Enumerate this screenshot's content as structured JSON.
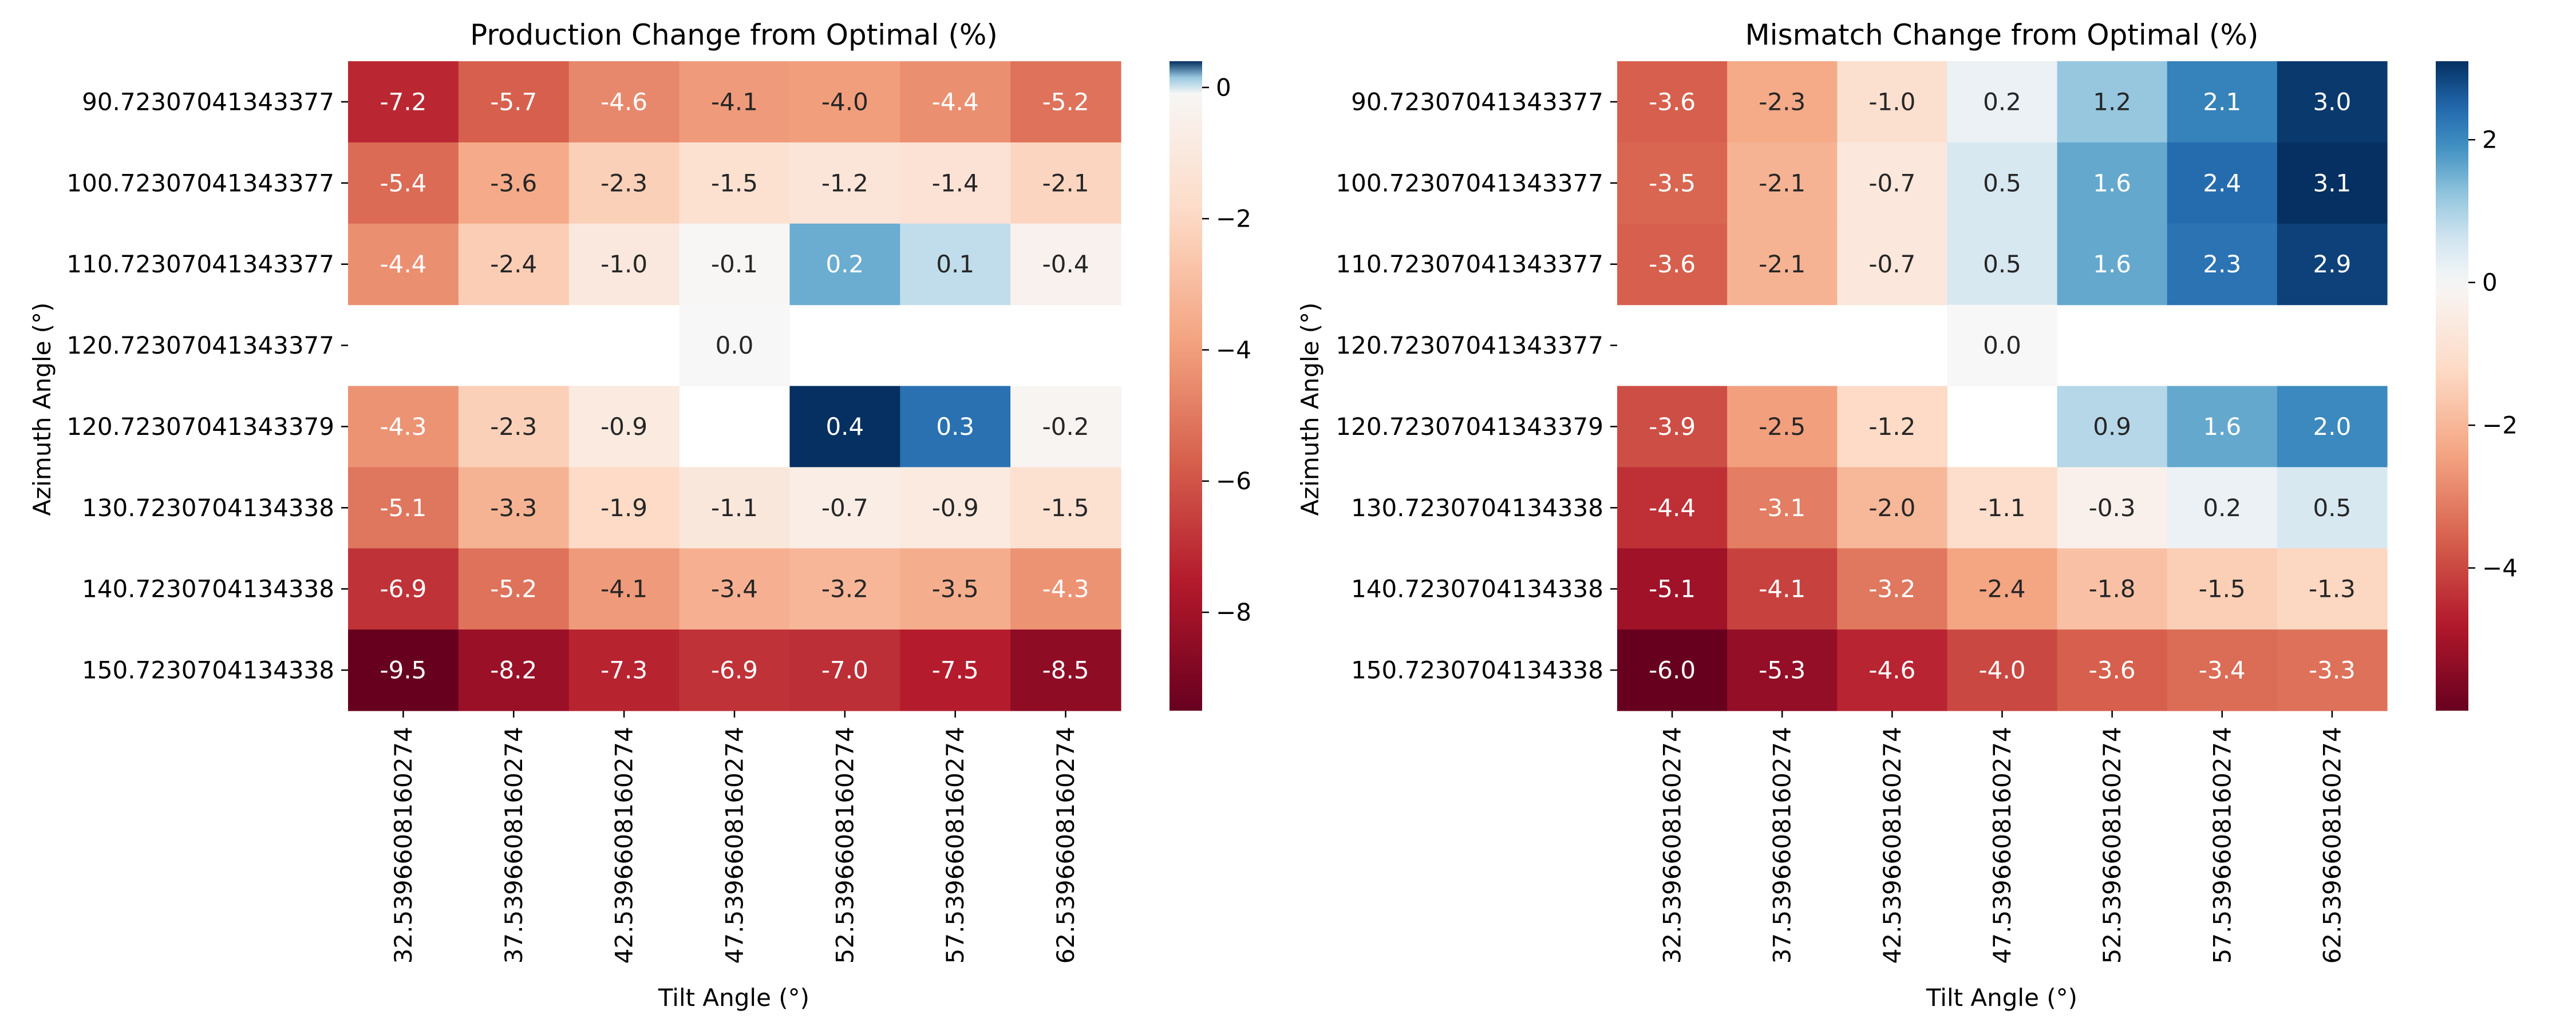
{
  "chart_data": [
    {
      "type": "heatmap",
      "title": "Production Change from Optimal (%)",
      "xlabel": "Tilt Angle (°)",
      "ylabel": "Azimuth Angle (°)",
      "x_categories": [
        "32.5396608160274",
        "37.5396608160274",
        "42.5396608160274",
        "47.5396608160274",
        "52.5396608160274",
        "57.5396608160274",
        "62.5396608160274"
      ],
      "y_categories": [
        "90.72307041343377",
        "100.72307041343377",
        "110.72307041343377",
        "120.72307041343377",
        "120.72307041343379",
        "130.7230704134338",
        "140.7230704134338",
        "150.7230704134338"
      ],
      "values": [
        [
          -7.2,
          -5.7,
          -4.6,
          -4.1,
          -4.0,
          -4.4,
          -5.2
        ],
        [
          -5.4,
          -3.6,
          -2.3,
          -1.5,
          -1.2,
          -1.4,
          -2.1
        ],
        [
          -4.4,
          -2.4,
          -1.0,
          -0.1,
          0.2,
          0.1,
          -0.4
        ],
        [
          null,
          null,
          null,
          0.0,
          null,
          null,
          null
        ],
        [
          -4.3,
          -2.3,
          -0.9,
          null,
          0.4,
          0.3,
          -0.2
        ],
        [
          -5.1,
          -3.3,
          -1.9,
          -1.1,
          -0.7,
          -0.9,
          -1.5
        ],
        [
          -6.9,
          -5.2,
          -4.1,
          -3.4,
          -3.2,
          -3.5,
          -4.3
        ],
        [
          -9.5,
          -8.2,
          -7.3,
          -6.9,
          -7.0,
          -7.5,
          -8.5
        ]
      ],
      "display_labels": [
        [
          "-7.2",
          "-5.7",
          "-4.6",
          "-4.1",
          "-4.0",
          "-4.4",
          "-5.2"
        ],
        [
          "-5.4",
          "-3.6",
          "-2.3",
          "-1.5",
          "-1.2",
          "-1.4",
          "-2.1"
        ],
        [
          "-4.4",
          "-2.4",
          "-1.0",
          "-0.1",
          "0.2",
          "0.1",
          "-0.4"
        ],
        [
          null,
          null,
          null,
          "0.0",
          null,
          null,
          null
        ],
        [
          "-4.3",
          "-2.3",
          "-0.9",
          null,
          "0.4",
          "0.3",
          "-0.2"
        ],
        [
          "-5.1",
          "-3.3",
          "-1.9",
          "-1.1",
          "-0.7",
          "-0.9",
          "-1.5"
        ],
        [
          "-6.9",
          "-5.2",
          "-4.1",
          "-3.4",
          "-3.2",
          "-3.5",
          "-4.3"
        ],
        [
          "-9.5",
          "-8.2",
          "-7.3",
          "-6.9",
          "-7.0",
          "-7.5",
          "-8.5"
        ]
      ],
      "colormap": "RdBu",
      "vmin": -9.5,
      "vmax": 0.4,
      "vcenter": 0,
      "colorbar_ticks": [
        0,
        -2,
        -4,
        -6,
        -8
      ],
      "colorbar_tick_labels": [
        "0",
        "−2",
        "−4",
        "−6",
        "−8"
      ],
      "missing_color": "#ffffff"
    },
    {
      "type": "heatmap",
      "title": "Mismatch Change from Optimal (%)",
      "xlabel": "Tilt Angle (°)",
      "ylabel": "Azimuth Angle (°)",
      "x_categories": [
        "32.5396608160274",
        "37.5396608160274",
        "42.5396608160274",
        "47.5396608160274",
        "52.5396608160274",
        "57.5396608160274",
        "62.5396608160274"
      ],
      "y_categories": [
        "90.72307041343377",
        "100.72307041343377",
        "110.72307041343377",
        "120.72307041343377",
        "120.72307041343379",
        "130.7230704134338",
        "140.7230704134338",
        "150.7230704134338"
      ],
      "values": [
        [
          -3.6,
          -2.3,
          -1.0,
          0.2,
          1.2,
          2.1,
          3.0
        ],
        [
          -3.5,
          -2.1,
          -0.7,
          0.5,
          1.6,
          2.4,
          3.1
        ],
        [
          -3.6,
          -2.1,
          -0.7,
          0.5,
          1.6,
          2.3,
          2.9
        ],
        [
          null,
          null,
          null,
          0.0,
          null,
          null,
          null
        ],
        [
          -3.9,
          -2.5,
          -1.2,
          null,
          0.9,
          1.6,
          2.0
        ],
        [
          -4.4,
          -3.1,
          -2.0,
          -1.1,
          -0.3,
          0.2,
          0.5
        ],
        [
          -5.1,
          -4.1,
          -3.2,
          -2.4,
          -1.8,
          -1.5,
          -1.3
        ],
        [
          -6.0,
          -5.3,
          -4.6,
          -4.0,
          -3.6,
          -3.4,
          -3.3
        ]
      ],
      "display_labels": [
        [
          "-3.6",
          "-2.3",
          "-1.0",
          "0.2",
          "1.2",
          "2.1",
          "3.0"
        ],
        [
          "-3.5",
          "-2.1",
          "-0.7",
          "0.5",
          "1.6",
          "2.4",
          "3.1"
        ],
        [
          "-3.6",
          "-2.1",
          "-0.7",
          "0.5",
          "1.6",
          "2.3",
          "2.9"
        ],
        [
          null,
          null,
          null,
          "0.0",
          null,
          null,
          null
        ],
        [
          "-3.9",
          "-2.5",
          "-1.2",
          null,
          "0.9",
          "1.6",
          "2.0"
        ],
        [
          "-4.4",
          "-3.1",
          "-2.0",
          "-1.1",
          "-0.3",
          "0.2",
          "0.5"
        ],
        [
          "-5.1",
          "-4.1",
          "-3.2",
          "-2.4",
          "-1.8",
          "-1.5",
          "-1.3"
        ],
        [
          "-6.0",
          "-5.3",
          "-4.6",
          "-4.0",
          "-3.6",
          "-3.4",
          "-3.3"
        ]
      ],
      "colormap": "RdBu",
      "vmin": -6.0,
      "vmax": 3.1,
      "vcenter": 0,
      "colorbar_ticks": [
        2,
        0,
        -2,
        -4
      ],
      "colorbar_tick_labels": [
        "2",
        "0",
        "−2",
        "−4"
      ],
      "missing_color": "#ffffff"
    }
  ]
}
